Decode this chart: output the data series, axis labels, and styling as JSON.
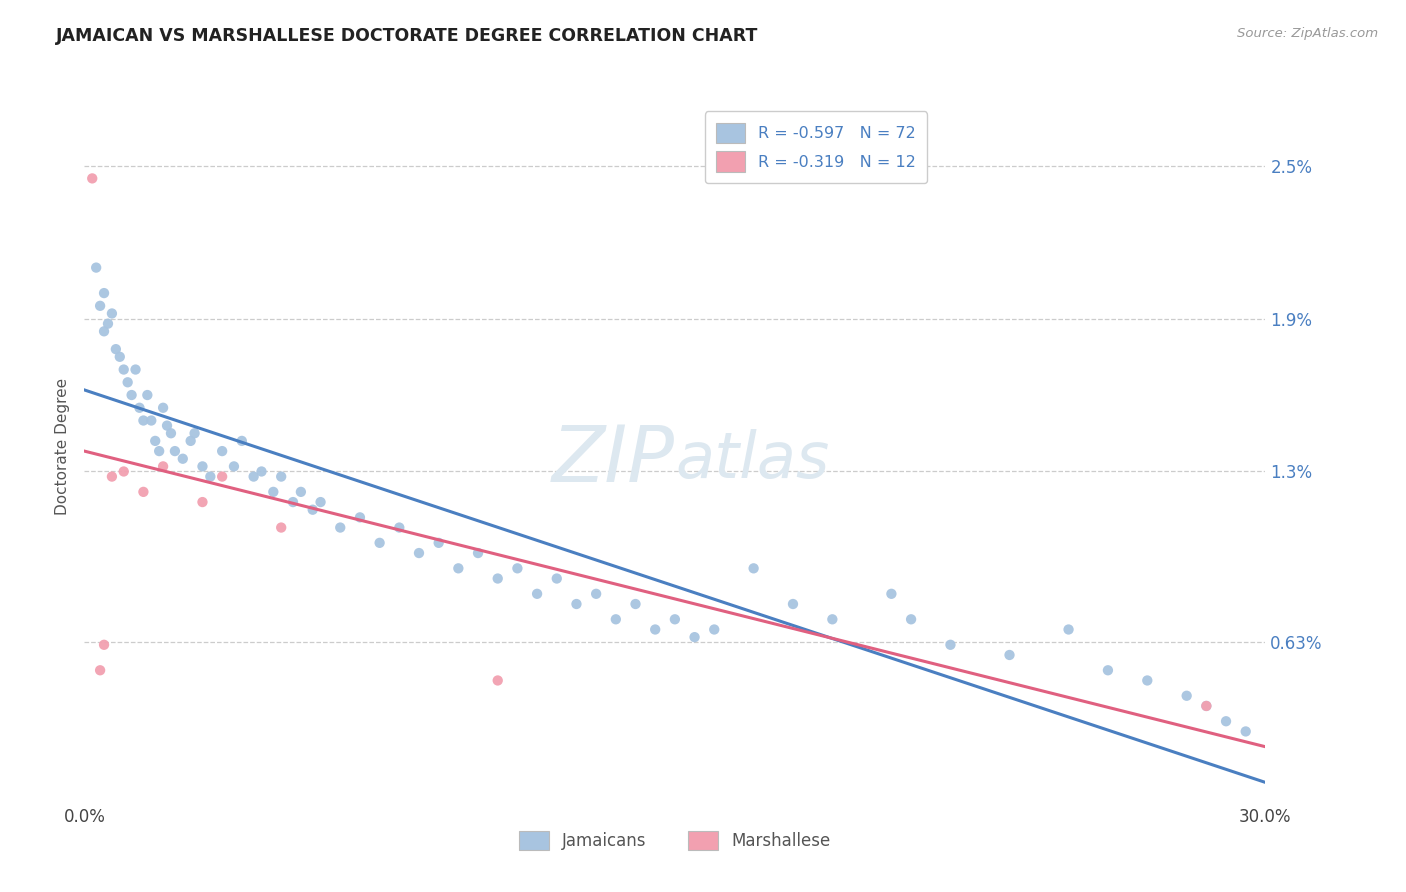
{
  "title": "JAMAICAN VS MARSHALLESE DOCTORATE DEGREE CORRELATION CHART",
  "source": "Source: ZipAtlas.com",
  "xlabel_jamaicans": "Jamaicans",
  "xlabel_marshallese": "Marshallese",
  "ylabel": "Doctorate Degree",
  "xlim": [
    0.0,
    30.0
  ],
  "ylim": [
    0.0,
    2.8
  ],
  "yticks": [
    0.63,
    1.3,
    1.9,
    2.5
  ],
  "ytick_labels": [
    "0.63%",
    "1.3%",
    "1.9%",
    "2.5%"
  ],
  "xticks": [
    0.0,
    30.0
  ],
  "xtick_labels": [
    "0.0%",
    "30.0%"
  ],
  "r_jamaican": -0.597,
  "n_jamaican": 72,
  "r_marshallese": -0.319,
  "n_marshallese": 12,
  "color_jamaican": "#a8c4e0",
  "color_marshallese": "#f2a0b0",
  "line_color_jamaican": "#4a7fc1",
  "line_color_marshallese": "#e06080",
  "tick_color": "#4a7fc1",
  "watermark_color": "#dde8f0",
  "background_color": "#ffffff",
  "jamaican_x": [
    0.3,
    0.4,
    0.5,
    0.5,
    0.6,
    0.7,
    0.8,
    0.9,
    1.0,
    1.1,
    1.2,
    1.3,
    1.4,
    1.5,
    1.6,
    1.7,
    1.8,
    1.9,
    2.0,
    2.1,
    2.2,
    2.3,
    2.5,
    2.7,
    2.8,
    3.0,
    3.2,
    3.5,
    3.8,
    4.0,
    4.3,
    4.5,
    4.8,
    5.0,
    5.3,
    5.5,
    5.8,
    6.0,
    6.5,
    7.0,
    7.5,
    8.0,
    8.5,
    9.0,
    9.5,
    10.0,
    10.5,
    11.0,
    11.5,
    12.0,
    12.5,
    13.0,
    13.5,
    14.0,
    14.5,
    15.0,
    15.5,
    16.0,
    17.0,
    18.0,
    19.0,
    20.5,
    21.0,
    22.0,
    23.5,
    25.0,
    26.0,
    27.0,
    28.0,
    28.5,
    29.0,
    29.5
  ],
  "jamaican_y": [
    2.1,
    1.95,
    1.85,
    2.0,
    1.88,
    1.92,
    1.78,
    1.75,
    1.7,
    1.65,
    1.6,
    1.7,
    1.55,
    1.5,
    1.6,
    1.5,
    1.42,
    1.38,
    1.55,
    1.48,
    1.45,
    1.38,
    1.35,
    1.42,
    1.45,
    1.32,
    1.28,
    1.38,
    1.32,
    1.42,
    1.28,
    1.3,
    1.22,
    1.28,
    1.18,
    1.22,
    1.15,
    1.18,
    1.08,
    1.12,
    1.02,
    1.08,
    0.98,
    1.02,
    0.92,
    0.98,
    0.88,
    0.92,
    0.82,
    0.88,
    0.78,
    0.82,
    0.72,
    0.78,
    0.68,
    0.72,
    0.65,
    0.68,
    0.92,
    0.78,
    0.72,
    0.82,
    0.72,
    0.62,
    0.58,
    0.68,
    0.52,
    0.48,
    0.42,
    0.38,
    0.32,
    0.28
  ],
  "marshallese_x": [
    0.2,
    0.4,
    0.5,
    0.7,
    1.0,
    1.5,
    2.0,
    3.0,
    3.5,
    5.0,
    10.5,
    28.5
  ],
  "marshallese_y": [
    2.45,
    0.52,
    0.62,
    1.28,
    1.3,
    1.22,
    1.32,
    1.18,
    1.28,
    1.08,
    0.48,
    0.38
  ],
  "line_jamaican_x0": 0.0,
  "line_jamaican_y0": 1.62,
  "line_jamaican_x1": 30.0,
  "line_jamaican_y1": 0.08,
  "line_marshallese_x0": 0.0,
  "line_marshallese_y0": 1.38,
  "line_marshallese_x1": 30.0,
  "line_marshallese_y1": 0.22
}
